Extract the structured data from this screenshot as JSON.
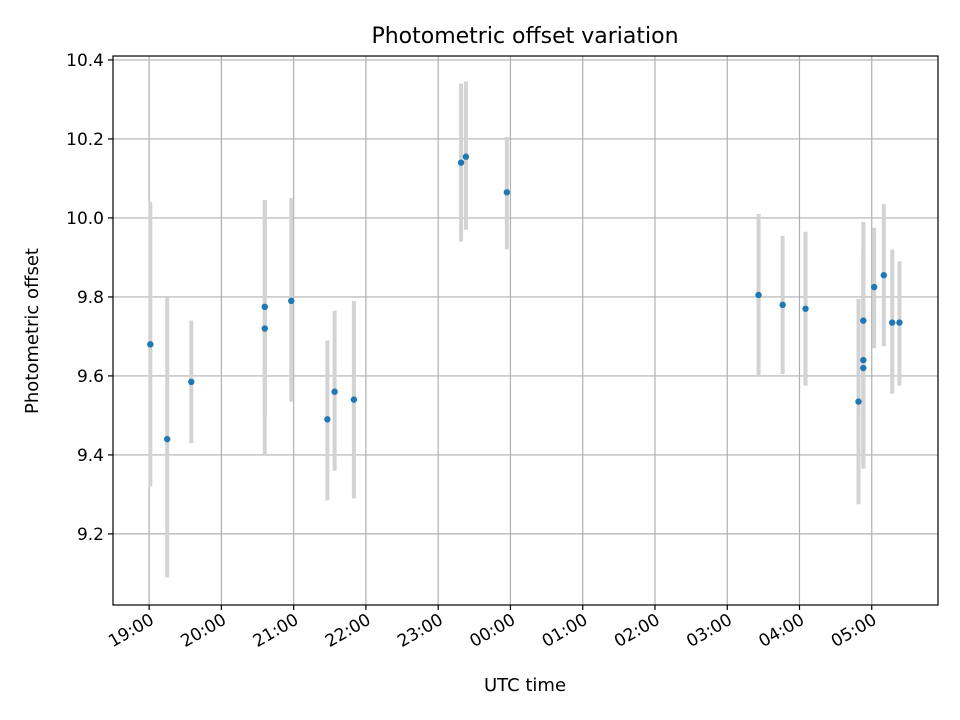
{
  "chart_data": {
    "type": "scatter",
    "title": "Photometric offset variation",
    "xlabel": "UTC time",
    "ylabel": "Photometric offset",
    "x_is_time": true,
    "xlim": [
      "18:30",
      "05:55"
    ],
    "ylim": [
      9.02,
      10.41
    ],
    "grid": true,
    "x_ticks": [
      "19:00",
      "20:00",
      "21:00",
      "22:00",
      "23:00",
      "00:00",
      "01:00",
      "02:00",
      "03:00",
      "04:00",
      "05:00"
    ],
    "y_ticks": [
      9.2,
      9.4,
      9.6,
      9.8,
      10.0,
      10.2,
      10.4
    ],
    "y_tick_labels": [
      "9.2",
      "9.4",
      "9.6",
      "9.8",
      "10.0",
      "10.2",
      "10.4"
    ],
    "marker_color": "#1f77b4",
    "errorbar_color": "#d3d3d3",
    "points": [
      {
        "x": "19:01",
        "y": 9.68,
        "ylow": 9.32,
        "yhigh": 10.04
      },
      {
        "x": "19:15",
        "y": 9.44,
        "ylow": 9.09,
        "yhigh": 9.8
      },
      {
        "x": "19:35",
        "y": 9.585,
        "ylow": 9.43,
        "yhigh": 9.74
      },
      {
        "x": "20:36",
        "y": 9.775,
        "ylow": 9.5,
        "yhigh": 10.045
      },
      {
        "x": "20:36",
        "y": 9.72,
        "ylow": 9.4,
        "yhigh": 10.045
      },
      {
        "x": "20:58",
        "y": 9.79,
        "ylow": 9.535,
        "yhigh": 10.05
      },
      {
        "x": "21:28",
        "y": 9.49,
        "ylow": 9.285,
        "yhigh": 9.69
      },
      {
        "x": "21:34",
        "y": 9.56,
        "ylow": 9.36,
        "yhigh": 9.765
      },
      {
        "x": "21:50",
        "y": 9.54,
        "ylow": 9.29,
        "yhigh": 9.79
      },
      {
        "x": "23:19",
        "y": 10.14,
        "ylow": 9.94,
        "yhigh": 10.34
      },
      {
        "x": "23:23",
        "y": 10.155,
        "ylow": 9.97,
        "yhigh": 10.345
      },
      {
        "x": "23:57",
        "y": 10.065,
        "ylow": 9.92,
        "yhigh": 10.205
      },
      {
        "x": "03:26",
        "y": 9.805,
        "ylow": 9.6,
        "yhigh": 10.01
      },
      {
        "x": "03:46",
        "y": 9.78,
        "ylow": 9.605,
        "yhigh": 9.955
      },
      {
        "x": "04:05",
        "y": 9.77,
        "ylow": 9.575,
        "yhigh": 9.965
      },
      {
        "x": "04:49",
        "y": 9.535,
        "ylow": 9.275,
        "yhigh": 9.795
      },
      {
        "x": "04:53",
        "y": 9.74,
        "ylow": 9.5,
        "yhigh": 9.99
      },
      {
        "x": "04:53",
        "y": 9.64,
        "ylow": 9.365,
        "yhigh": 9.915
      },
      {
        "x": "04:53",
        "y": 9.62,
        "ylow": 9.385,
        "yhigh": 9.8
      },
      {
        "x": "05:02",
        "y": 9.825,
        "ylow": 9.67,
        "yhigh": 9.975
      },
      {
        "x": "05:10",
        "y": 9.855,
        "ylow": 9.675,
        "yhigh": 10.035
      },
      {
        "x": "05:17",
        "y": 9.735,
        "ylow": 9.555,
        "yhigh": 9.92
      },
      {
        "x": "05:23",
        "y": 9.735,
        "ylow": 9.575,
        "yhigh": 9.89
      }
    ]
  }
}
